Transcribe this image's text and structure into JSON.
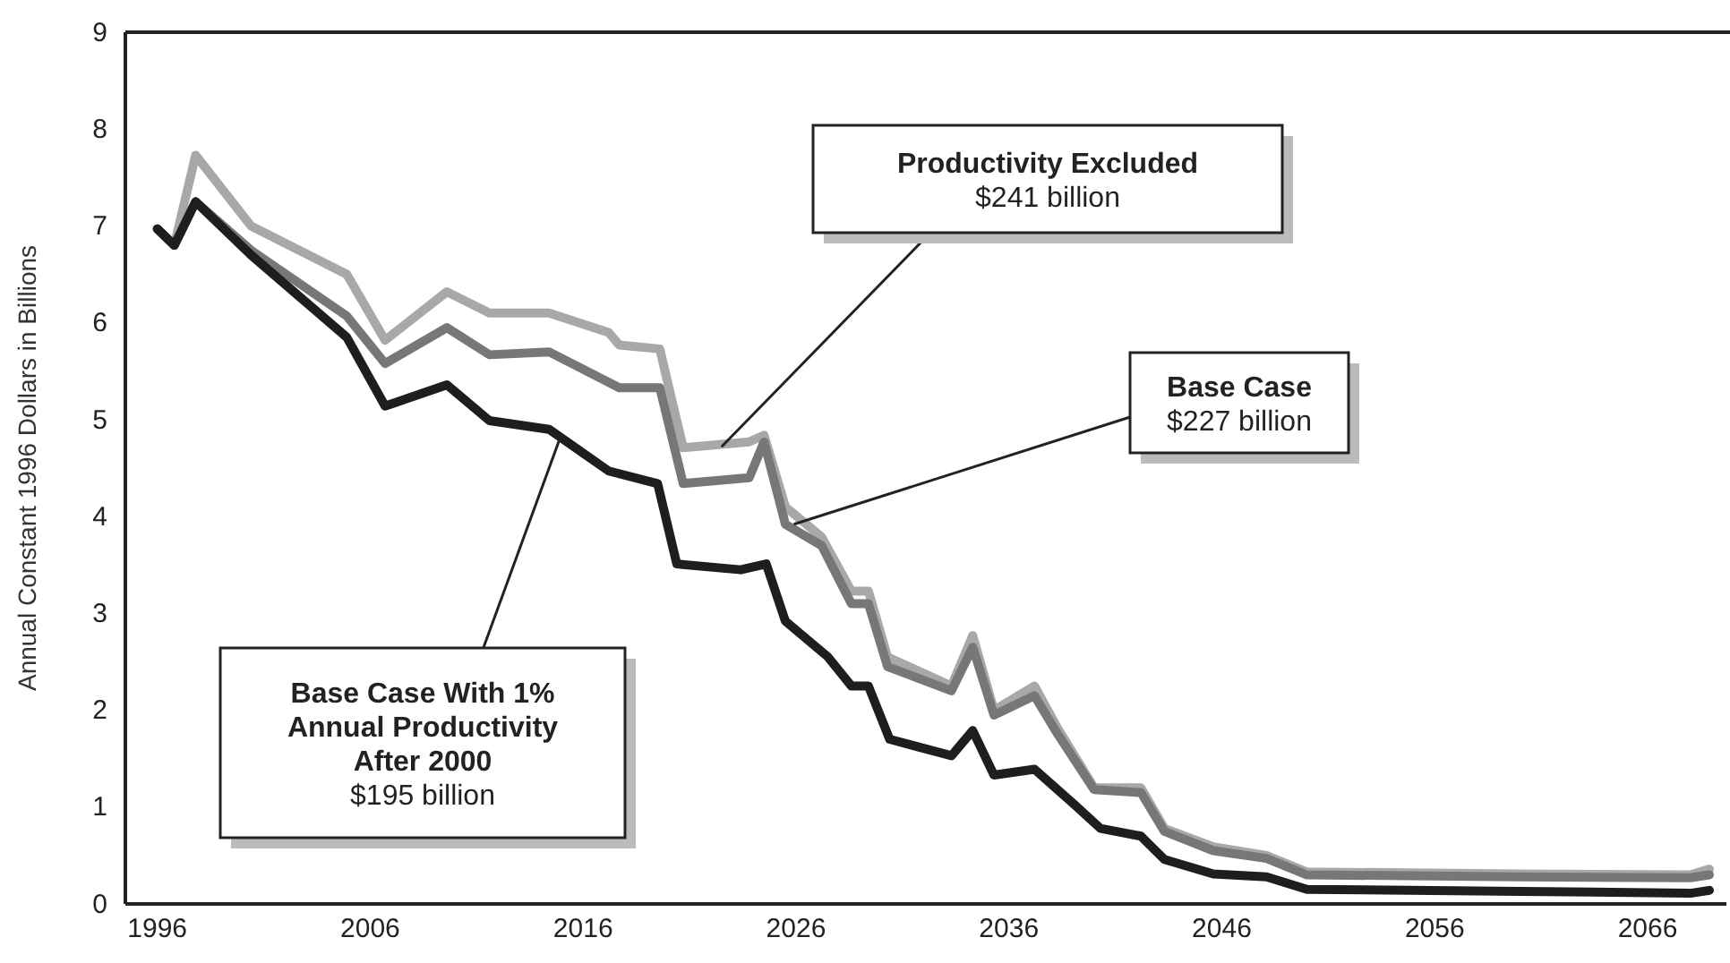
{
  "chart_data": {
    "type": "line",
    "ylabel": "Annual Constant 1996 Dollars in Billions",
    "xlim": [
      1994.5,
      2069.7
    ],
    "ylim": [
      0,
      9
    ],
    "xticks": [
      1996,
      2006,
      2016,
      2026,
      2036,
      2046,
      2056,
      2066
    ],
    "yticks": [
      0,
      1,
      2,
      3,
      4,
      5,
      6,
      7,
      8,
      9
    ],
    "grid": false,
    "marker": "none",
    "line_style": "solid",
    "series": [
      {
        "color": "#a8a8a8",
        "x": [
          1996,
          1996.8,
          1997.8,
          2000.4,
          2004.9,
          2006.7,
          2009.6,
          2011.6,
          2014.4,
          2017.2,
          2017.7,
          2019.6,
          2020.7,
          2023.8,
          2024.5,
          2025.5,
          2027.2,
          2028.6,
          2029.4,
          2030.3,
          2033.3,
          2034.3,
          2035.3,
          2037.2,
          2038.3,
          2040,
          2042.2,
          2043.3,
          2045.6,
          2048.1,
          2050,
          2060,
          2068,
          2068.9
        ],
        "values": [
          6.97,
          6.8,
          7.73,
          7.0,
          6.5,
          5.82,
          6.32,
          6.1,
          6.1,
          5.9,
          5.77,
          5.73,
          4.71,
          4.77,
          4.84,
          4.1,
          3.79,
          3.23,
          3.23,
          2.55,
          2.25,
          2.77,
          2.0,
          2.25,
          1.81,
          1.2,
          1.2,
          0.78,
          0.59,
          0.5,
          0.33,
          0.31,
          0.3,
          0.36
        ]
      },
      {
        "color": "#777777",
        "x": [
          1996,
          1996.8,
          1997.8,
          2000.4,
          2004.9,
          2006.7,
          2009.6,
          2011.6,
          2014.4,
          2017.7,
          2019.6,
          2020.7,
          2023.8,
          2024.5,
          2025.5,
          2027.2,
          2028.6,
          2029.4,
          2030.3,
          2033.3,
          2034.3,
          2035.3,
          2037.2,
          2038.3,
          2040,
          2042.2,
          2043.3,
          2045.6,
          2048.1,
          2050,
          2060,
          2068,
          2068.9
        ],
        "values": [
          6.97,
          6.8,
          7.25,
          6.75,
          6.07,
          5.58,
          5.95,
          5.67,
          5.7,
          5.33,
          5.33,
          4.34,
          4.4,
          4.77,
          3.92,
          3.7,
          3.1,
          3.1,
          2.45,
          2.2,
          2.65,
          1.95,
          2.15,
          1.75,
          1.18,
          1.15,
          0.75,
          0.55,
          0.47,
          0.3,
          0.28,
          0.27,
          0.3
        ]
      },
      {
        "color": "#1e1e1e",
        "x": [
          1996,
          1996.8,
          1997.8,
          2000.4,
          2004.9,
          2006.7,
          2009.6,
          2011.6,
          2014.4,
          2017.2,
          2019.5,
          2020.4,
          2023.4,
          2024.6,
          2025.5,
          2027.5,
          2028.6,
          2029.4,
          2030.4,
          2033.3,
          2034.3,
          2035.3,
          2037.2,
          2039.1,
          2040.3,
          2042.2,
          2043.3,
          2045.6,
          2048.1,
          2050,
          2060,
          2068,
          2068.9
        ],
        "values": [
          6.97,
          6.8,
          7.25,
          6.7,
          5.85,
          5.14,
          5.36,
          4.99,
          4.9,
          4.47,
          4.34,
          3.51,
          3.45,
          3.51,
          2.92,
          2.55,
          2.25,
          2.25,
          1.7,
          1.53,
          1.79,
          1.33,
          1.39,
          1.02,
          0.78,
          0.7,
          0.46,
          0.31,
          0.28,
          0.15,
          0.13,
          0.11,
          0.14
        ]
      }
    ],
    "annotations": [
      {
        "text": "Productivity Excluded\n$241 billion",
        "x": 2022.5,
        "y": 4.72
      },
      {
        "text": "Base Case\n$227 billion",
        "x": 2025.9,
        "y": 3.92
      },
      {
        "text": "Base Case With 1%\nAnnual Productivity\nAfter 2000\n$195 billion",
        "x": 2014.9,
        "y": 4.8
      }
    ]
  }
}
